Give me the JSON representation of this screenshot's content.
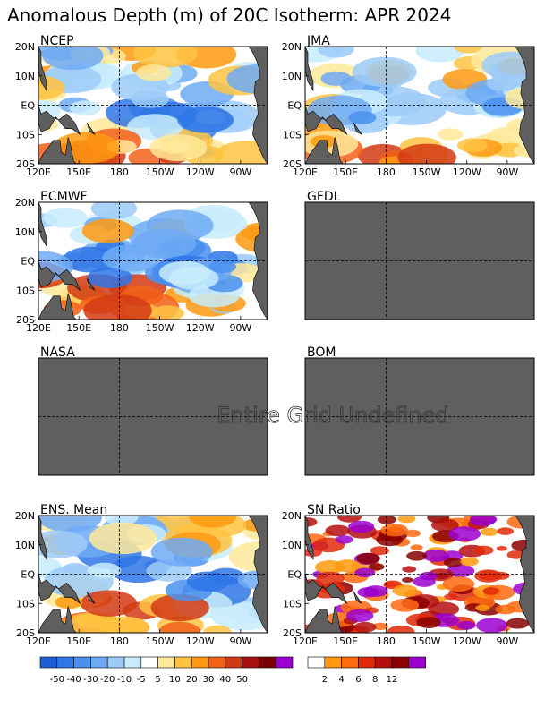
{
  "title": "Anomalous Depth (m) of 20C Isotherm: APR 2024",
  "lat_labels": [
    "20N",
    "10N",
    "EQ",
    "10S",
    "20S"
  ],
  "lon_labels": [
    "120E",
    "150E",
    "180",
    "150W",
    "120W",
    "90W"
  ],
  "undefined_text": "Entire Grid Undefined",
  "panels": [
    {
      "name": "NCEP",
      "status": "data"
    },
    {
      "name": "JMA",
      "status": "data"
    },
    {
      "name": "ECMWF",
      "status": "data"
    },
    {
      "name": "GFDL",
      "status": "undefined"
    },
    {
      "name": "NASA",
      "status": "undefined"
    },
    {
      "name": "BOM",
      "status": "undefined"
    },
    {
      "name": "ENS. Mean",
      "status": "data"
    },
    {
      "name": "SN Ratio",
      "status": "data"
    }
  ],
  "colors": {
    "land": "#5f5f5f",
    "undefined_fill": "#5f5f5f"
  },
  "chart_data": {
    "type": "heatmap",
    "legend_anomaly": {
      "labels": [
        "-50",
        "-40",
        "-30",
        "-20",
        "-10",
        "-5",
        "5",
        "10",
        "20",
        "30",
        "40",
        "50"
      ],
      "colors": [
        "#1f5fd6",
        "#2f76e6",
        "#4a90ee",
        "#6eaaf4",
        "#9ccbf8",
        "#c8ecfb",
        "#ffffff",
        "#ffe99a",
        "#ffc341",
        "#ff9a12",
        "#f2601a",
        "#d23a14",
        "#a80f0f",
        "#7a0000",
        "#9b00d0"
      ]
    },
    "legend_sn": {
      "labels": [
        "2",
        "4",
        "6",
        "8",
        "12"
      ],
      "colors": [
        "#ffffff",
        "#ff9a12",
        "#ff6a10",
        "#e02a0a",
        "#b40f0f",
        "#8a0000",
        "#9b00d0"
      ]
    }
  }
}
